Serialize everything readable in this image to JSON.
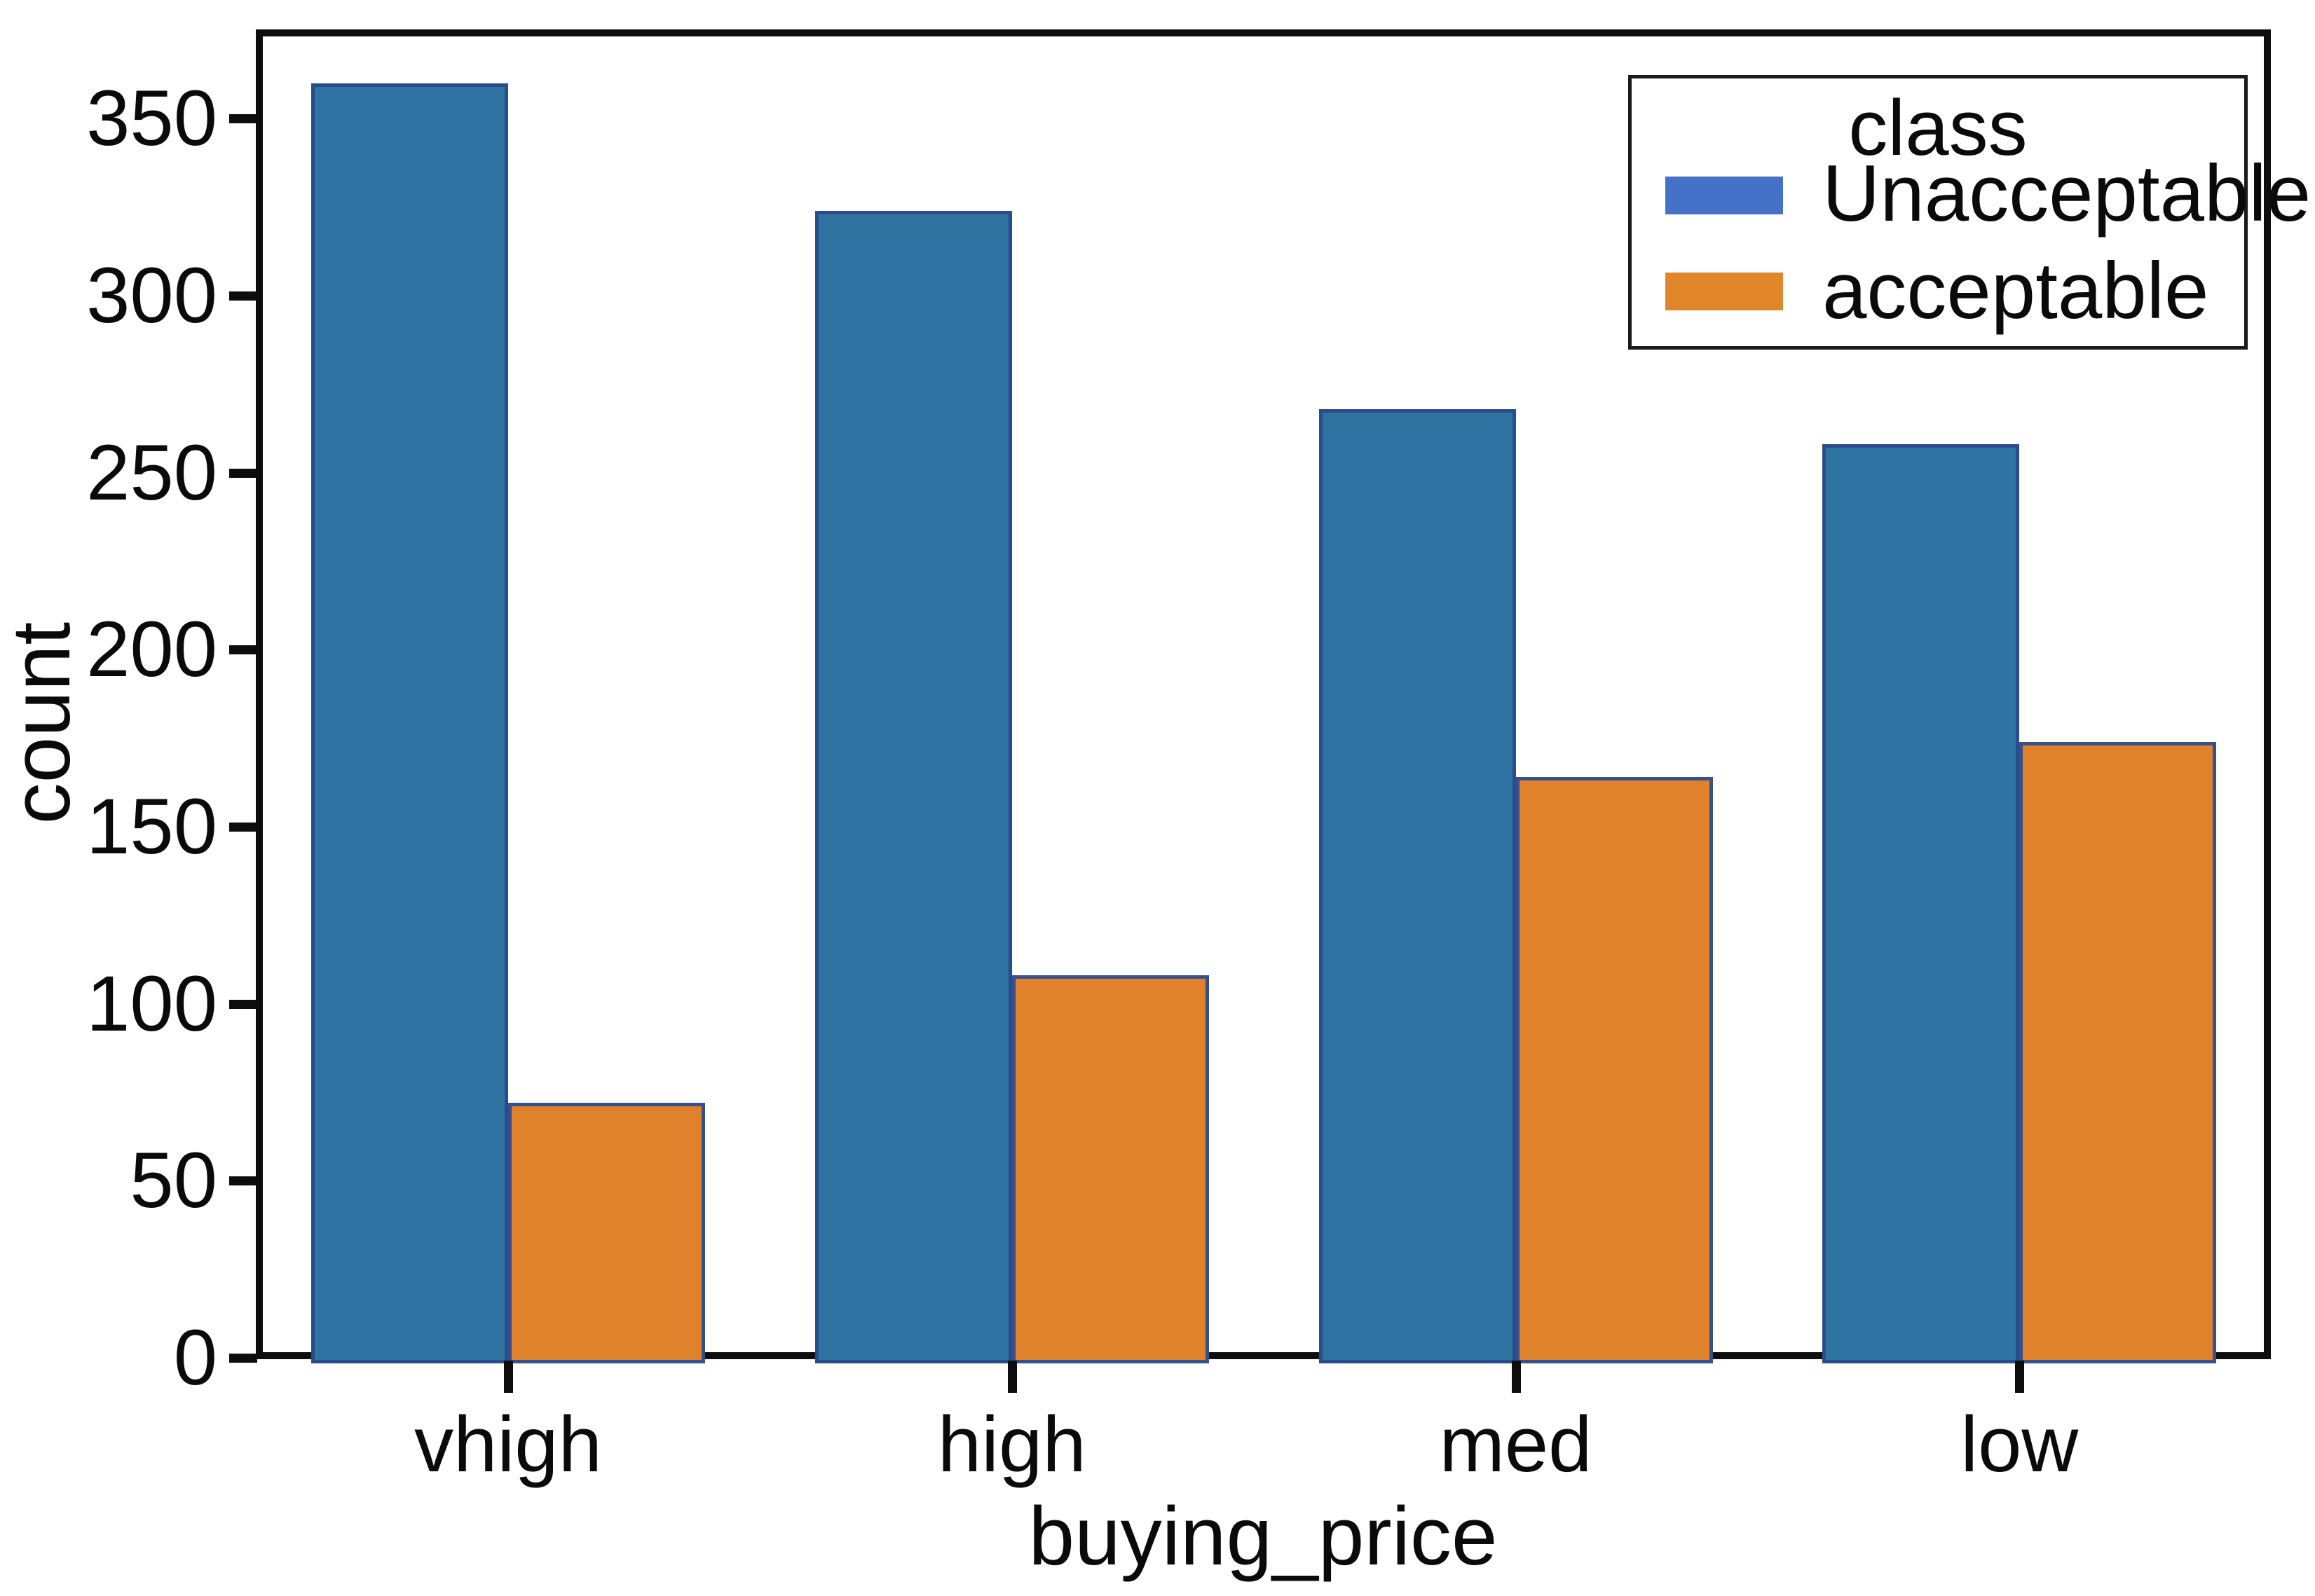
{
  "chart_data": {
    "type": "bar",
    "title": "",
    "xlabel": "buying_price",
    "ylabel": "count",
    "categories": [
      "vhigh",
      "high",
      "med",
      "low"
    ],
    "series": [
      {
        "name": "Unacceptable",
        "values": [
          360,
          324,
          268,
          258
        ],
        "color": "#2F73A3",
        "edge_color": "#2B4C8C",
        "legend_swatch_color": "#4671C8"
      },
      {
        "name": "acceptable",
        "values": [
          72,
          108,
          164,
          174
        ],
        "color": "#E0812B",
        "edge_color": "#36508F",
        "legend_swatch_color": "#E2862B"
      }
    ],
    "legend": {
      "title": "class",
      "position": "upper-right"
    },
    "ylim": [
      0,
      374
    ],
    "yticks": [
      0,
      50,
      100,
      150,
      200,
      250,
      300,
      350
    ],
    "grid": false,
    "frame_color": "#0d0d0d",
    "text_color": "#0a0a0a",
    "background_color": "#ffffff"
  }
}
